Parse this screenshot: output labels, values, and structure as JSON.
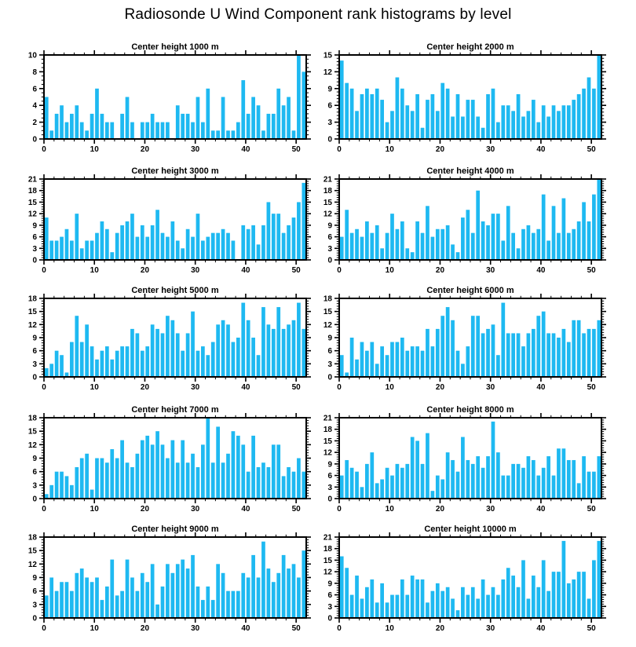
{
  "page_title": "Radiosonde U Wind Component rank histograms by level",
  "style": {
    "bar_color": "#1EB9F1",
    "axis_color": "#000000"
  },
  "chart_data": [
    {
      "type": "bar",
      "title": "Center height 1000 m",
      "xlim": [
        0,
        52
      ],
      "xticks": [
        0,
        10,
        20,
        30,
        40,
        50
      ],
      "ylim": [
        0,
        10
      ],
      "yticks": [
        0,
        2,
        4,
        6,
        8,
        10
      ],
      "values": [
        5,
        1,
        3,
        4,
        2,
        3,
        4,
        2,
        1,
        3,
        6,
        3,
        2,
        2,
        0,
        3,
        5,
        2,
        0,
        2,
        2,
        3,
        2,
        2,
        2,
        0,
        4,
        3,
        3,
        2,
        5,
        2,
        6,
        1,
        1,
        5,
        1,
        1,
        2,
        7,
        3,
        5,
        4,
        1,
        3,
        3,
        6,
        4,
        5,
        1,
        10,
        8
      ]
    },
    {
      "type": "bar",
      "title": "Center height 2000 m",
      "xlim": [
        0,
        52
      ],
      "xticks": [
        0,
        10,
        20,
        30,
        40,
        50
      ],
      "ylim": [
        0,
        15
      ],
      "yticks": [
        0,
        3,
        6,
        9,
        12,
        15
      ],
      "values": [
        14,
        10,
        9,
        5,
        8,
        9,
        8,
        9,
        7,
        3,
        5,
        11,
        9,
        6,
        5,
        8,
        2,
        7,
        8,
        5,
        10,
        9,
        4,
        8,
        4,
        7,
        7,
        4,
        2,
        8,
        9,
        3,
        6,
        6,
        5,
        8,
        4,
        5,
        7,
        3,
        6,
        4,
        6,
        5,
        6,
        6,
        7,
        8,
        9,
        11,
        9,
        15
      ]
    },
    {
      "type": "bar",
      "title": "Center height 3000 m",
      "xlim": [
        0,
        52
      ],
      "xticks": [
        0,
        10,
        20,
        30,
        40,
        50
      ],
      "ylim": [
        0,
        21
      ],
      "yticks": [
        0,
        3,
        6,
        9,
        12,
        15,
        18,
        21
      ],
      "values": [
        11,
        5,
        5,
        6,
        8,
        5,
        12,
        3,
        5,
        5,
        7,
        10,
        8,
        2,
        7,
        9,
        10,
        12,
        6,
        9,
        6,
        9,
        13,
        7,
        6,
        10,
        5,
        3,
        8,
        6,
        12,
        5,
        6,
        7,
        7,
        8,
        7,
        5,
        0,
        9,
        8,
        9,
        4,
        9,
        15,
        12,
        12,
        7,
        9,
        11,
        15,
        20
      ]
    },
    {
      "type": "bar",
      "title": "Center height 4000 m",
      "xlim": [
        0,
        52
      ],
      "xticks": [
        0,
        10,
        20,
        30,
        40,
        50
      ],
      "ylim": [
        0,
        21
      ],
      "yticks": [
        0,
        3,
        6,
        9,
        12,
        15,
        18,
        21
      ],
      "values": [
        6,
        13,
        7,
        8,
        6,
        10,
        7,
        9,
        3,
        7,
        12,
        8,
        10,
        3,
        2,
        10,
        7,
        14,
        6,
        8,
        8,
        9,
        4,
        2,
        11,
        13,
        7,
        18,
        10,
        9,
        12,
        12,
        5,
        14,
        7,
        3,
        8,
        9,
        7,
        8,
        17,
        5,
        14,
        7,
        16,
        7,
        8,
        10,
        15,
        10,
        17,
        21
      ]
    },
    {
      "type": "bar",
      "title": "Center height 5000 m",
      "xlim": [
        0,
        52
      ],
      "xticks": [
        0,
        10,
        20,
        30,
        40,
        50
      ],
      "ylim": [
        0,
        18
      ],
      "yticks": [
        0,
        3,
        6,
        9,
        12,
        15,
        18
      ],
      "values": [
        2,
        3,
        6,
        5,
        1,
        8,
        14,
        8,
        12,
        7,
        4,
        6,
        7,
        4,
        6,
        7,
        7,
        11,
        10,
        6,
        7,
        12,
        11,
        10,
        14,
        13,
        10,
        6,
        10,
        15,
        6,
        7,
        5,
        8,
        12,
        13,
        12,
        8,
        9,
        17,
        13,
        9,
        5,
        16,
        12,
        11,
        16,
        11,
        12,
        13,
        17,
        11
      ]
    },
    {
      "type": "bar",
      "title": "Center height 6000 m",
      "xlim": [
        0,
        52
      ],
      "xticks": [
        0,
        10,
        20,
        30,
        40,
        50
      ],
      "ylim": [
        0,
        18
      ],
      "yticks": [
        0,
        3,
        6,
        9,
        12,
        15,
        18
      ],
      "values": [
        5,
        1,
        9,
        4,
        8,
        6,
        8,
        3,
        7,
        5,
        8,
        8,
        9,
        6,
        7,
        7,
        6,
        11,
        7,
        11,
        14,
        16,
        13,
        6,
        3,
        7,
        14,
        14,
        10,
        11,
        12,
        5,
        17,
        10,
        10,
        10,
        7,
        10,
        11,
        14,
        15,
        10,
        10,
        9,
        11,
        8,
        13,
        13,
        10,
        11,
        11,
        13
      ]
    },
    {
      "type": "bar",
      "title": "Center height 7000 m",
      "xlim": [
        0,
        52
      ],
      "xticks": [
        0,
        10,
        20,
        30,
        40,
        50
      ],
      "ylim": [
        0,
        18
      ],
      "yticks": [
        0,
        3,
        6,
        9,
        12,
        15,
        18
      ],
      "values": [
        1,
        3,
        6,
        6,
        5,
        3,
        7,
        9,
        10,
        2,
        9,
        9,
        8,
        11,
        9,
        13,
        8,
        7,
        10,
        13,
        14,
        12,
        15,
        12,
        9,
        13,
        8,
        13,
        8,
        10,
        7,
        12,
        18,
        8,
        16,
        8,
        10,
        15,
        14,
        12,
        6,
        14,
        7,
        8,
        7,
        12,
        12,
        5,
        7,
        6,
        9,
        6
      ]
    },
    {
      "type": "bar",
      "title": "Center height 8000 m",
      "xlim": [
        0,
        52
      ],
      "xticks": [
        0,
        10,
        20,
        30,
        40,
        50
      ],
      "ylim": [
        0,
        21
      ],
      "yticks": [
        0,
        3,
        6,
        9,
        12,
        15,
        18,
        21
      ],
      "values": [
        6,
        10,
        8,
        7,
        3,
        9,
        12,
        4,
        5,
        8,
        6,
        9,
        8,
        9,
        16,
        15,
        9,
        17,
        2,
        6,
        5,
        12,
        10,
        7,
        16,
        10,
        9,
        11,
        8,
        11,
        20,
        12,
        6,
        6,
        9,
        9,
        8,
        11,
        10,
        6,
        8,
        11,
        6,
        13,
        13,
        10,
        10,
        4,
        11,
        7,
        7,
        11
      ]
    },
    {
      "type": "bar",
      "title": "Center height 9000 m",
      "xlim": [
        0,
        52
      ],
      "xticks": [
        0,
        10,
        20,
        30,
        40,
        50
      ],
      "ylim": [
        0,
        18
      ],
      "yticks": [
        0,
        3,
        6,
        9,
        12,
        15,
        18
      ],
      "values": [
        5,
        9,
        6,
        8,
        8,
        6,
        10,
        11,
        9,
        8,
        9,
        4,
        7,
        13,
        5,
        6,
        13,
        9,
        6,
        10,
        8,
        12,
        3,
        7,
        12,
        10,
        12,
        13,
        11,
        14,
        7,
        4,
        7,
        4,
        12,
        10,
        6,
        6,
        6,
        10,
        9,
        14,
        9,
        17,
        11,
        8,
        10,
        14,
        11,
        12,
        9,
        15
      ]
    },
    {
      "type": "bar",
      "title": "Center height 10000 m",
      "xlim": [
        0,
        52
      ],
      "xticks": [
        0,
        10,
        20,
        30,
        40,
        50
      ],
      "ylim": [
        0,
        21
      ],
      "yticks": [
        0,
        3,
        6,
        9,
        12,
        15,
        18,
        21
      ],
      "values": [
        16,
        13,
        6,
        11,
        5,
        8,
        10,
        4,
        9,
        4,
        6,
        6,
        10,
        6,
        11,
        10,
        10,
        4,
        7,
        9,
        7,
        8,
        5,
        2,
        8,
        6,
        8,
        5,
        10,
        6,
        8,
        6,
        10,
        13,
        11,
        8,
        15,
        5,
        11,
        8,
        15,
        7,
        12,
        12,
        20,
        9,
        10,
        12,
        12,
        5,
        15,
        20
      ]
    }
  ]
}
